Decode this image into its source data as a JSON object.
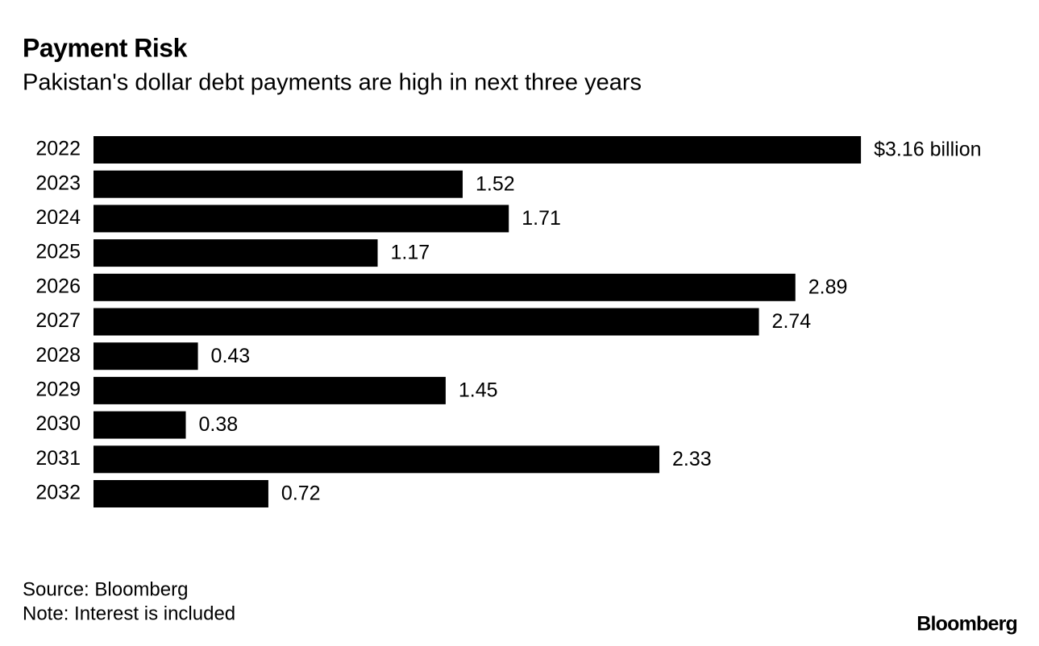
{
  "chart_data": {
    "type": "bar",
    "orientation": "horizontal",
    "title": "Payment Risk",
    "subtitle": "Pakistan's dollar debt payments are high in next three years",
    "categories": [
      "2022",
      "2023",
      "2024",
      "2025",
      "2026",
      "2027",
      "2028",
      "2029",
      "2030",
      "2031",
      "2032"
    ],
    "values": [
      3.16,
      1.52,
      1.71,
      1.17,
      2.89,
      2.74,
      0.43,
      1.45,
      0.38,
      2.33,
      0.72
    ],
    "value_labels": [
      "$3.16 billion",
      "1.52",
      "1.71",
      "1.17",
      "2.89",
      "2.74",
      "0.43",
      "1.45",
      "0.38",
      "2.33",
      "0.72"
    ],
    "color": "#000000",
    "source": "Source: Bloomberg",
    "note": "Note: Interest is included",
    "brand": "Bloomberg"
  }
}
